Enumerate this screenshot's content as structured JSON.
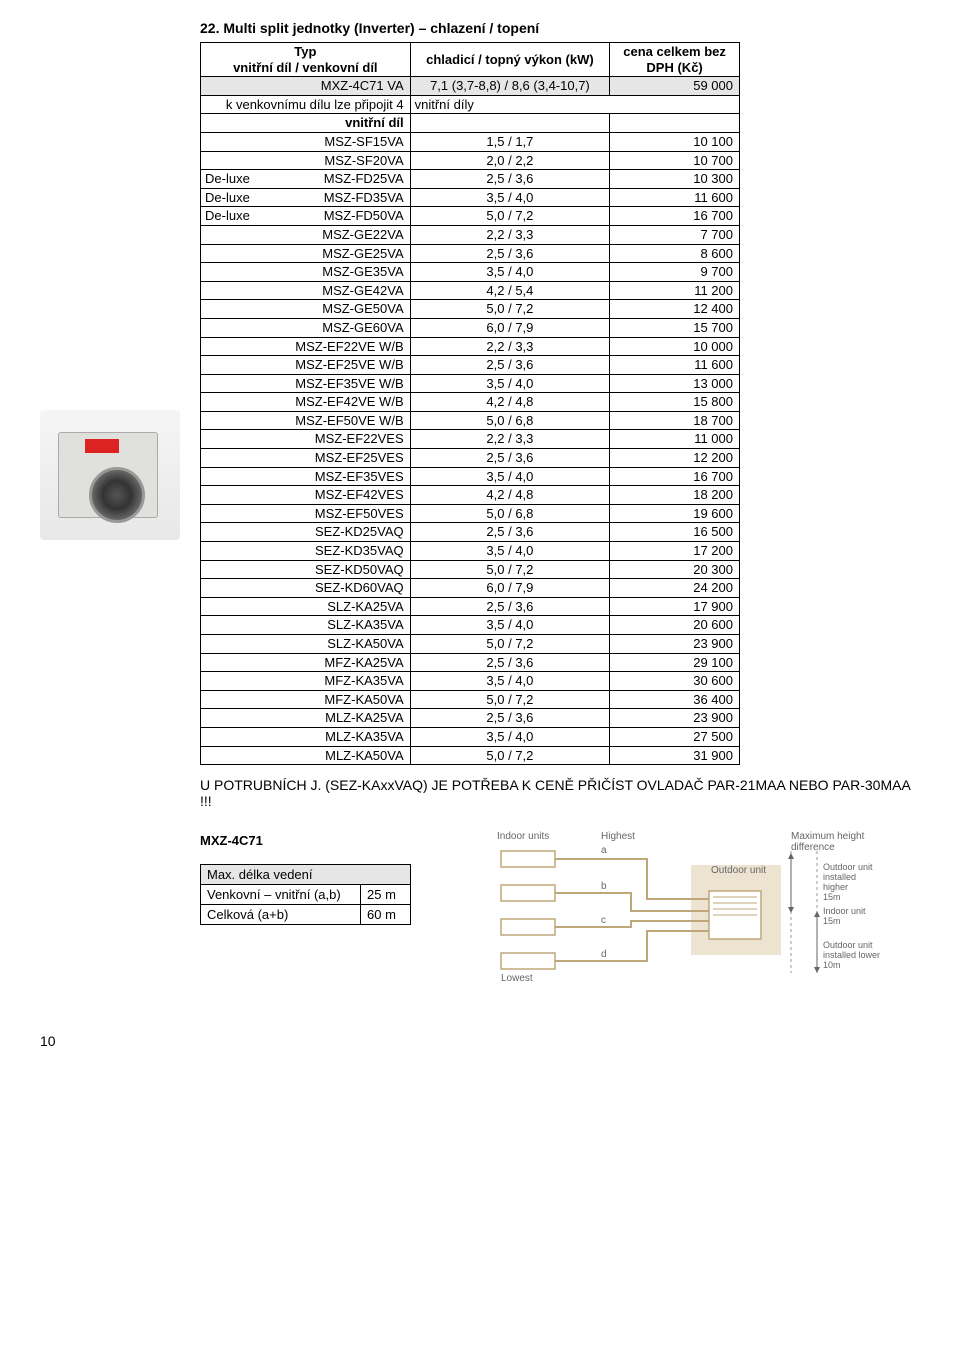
{
  "section_title": "22. Multi split jednotky (Inverter) – chlazení / topení",
  "headers": {
    "col1_line1": "Typ",
    "col1_line2": "vnitřní díl / venkovní díl",
    "col2": "chladicí / topný výkon (kW)",
    "col3_line1": "cena celkem bez",
    "col3_line2": "DPH (Kč)"
  },
  "master_row": {
    "name": "MXZ-4C71 VA",
    "power": "7,1 (3,7-8,8) / 8,6 (3,4-10,7)",
    "price": "59 000"
  },
  "attach_row": {
    "left": "k venkovnímu dílu lze připojit 4",
    "right": "vnitřní díly"
  },
  "inner_header": "vnitřní díl",
  "rows": [
    {
      "prefix": "",
      "name": "MSZ-SF15VA",
      "power": "1,5 / 1,7",
      "price": "10 100"
    },
    {
      "prefix": "",
      "name": "MSZ-SF20VA",
      "power": "2,0 / 2,2",
      "price": "10 700"
    },
    {
      "prefix": "De-luxe",
      "name": "MSZ-FD25VA",
      "power": "2,5 / 3,6",
      "price": "10 300"
    },
    {
      "prefix": "De-luxe",
      "name": "MSZ-FD35VA",
      "power": "3,5 / 4,0",
      "price": "11 600"
    },
    {
      "prefix": "De-luxe",
      "name": "MSZ-FD50VA",
      "power": "5,0 / 7,2",
      "price": "16 700"
    },
    {
      "prefix": "",
      "name": "MSZ-GE22VA",
      "power": "2,2 / 3,3",
      "price": "7 700"
    },
    {
      "prefix": "",
      "name": "MSZ-GE25VA",
      "power": "2,5 / 3,6",
      "price": "8 600"
    },
    {
      "prefix": "",
      "name": "MSZ-GE35VA",
      "power": "3,5 / 4,0",
      "price": "9 700"
    },
    {
      "prefix": "",
      "name": "MSZ-GE42VA",
      "power": "4,2 / 5,4",
      "price": "11 200"
    },
    {
      "prefix": "",
      "name": "MSZ-GE50VA",
      "power": "5,0 / 7,2",
      "price": "12 400"
    },
    {
      "prefix": "",
      "name": "MSZ-GE60VA",
      "power": "6,0 / 7,9",
      "price": "15 700"
    },
    {
      "prefix": "",
      "name": "MSZ-EF22VE W/B",
      "power": "2,2 / 3,3",
      "price": "10 000"
    },
    {
      "prefix": "",
      "name": "MSZ-EF25VE W/B",
      "power": "2,5 / 3,6",
      "price": "11 600"
    },
    {
      "prefix": "",
      "name": "MSZ-EF35VE W/B",
      "power": "3,5 / 4,0",
      "price": "13 000"
    },
    {
      "prefix": "",
      "name": "MSZ-EF42VE W/B",
      "power": "4,2 / 4,8",
      "price": "15 800"
    },
    {
      "prefix": "",
      "name": "MSZ-EF50VE W/B",
      "power": "5,0 / 6,8",
      "price": "18 700"
    },
    {
      "prefix": "",
      "name": "MSZ-EF22VES",
      "power": "2,2 / 3,3",
      "price": "11 000"
    },
    {
      "prefix": "",
      "name": "MSZ-EF25VES",
      "power": "2,5 / 3,6",
      "price": "12 200"
    },
    {
      "prefix": "",
      "name": "MSZ-EF35VES",
      "power": "3,5 / 4,0",
      "price": "16 700"
    },
    {
      "prefix": "",
      "name": "MSZ-EF42VES",
      "power": "4,2 / 4,8",
      "price": "18 200"
    },
    {
      "prefix": "",
      "name": "MSZ-EF50VES",
      "power": "5,0 / 6,8",
      "price": "19 600"
    },
    {
      "prefix": "",
      "name": "SEZ-KD25VAQ",
      "power": "2,5 / 3,6",
      "price": "16 500"
    },
    {
      "prefix": "",
      "name": "SEZ-KD35VAQ",
      "power": "3,5 / 4,0",
      "price": "17 200"
    },
    {
      "prefix": "",
      "name": "SEZ-KD50VAQ",
      "power": "5,0 / 7,2",
      "price": "20 300"
    },
    {
      "prefix": "",
      "name": "SEZ-KD60VAQ",
      "power": "6,0 / 7,9",
      "price": "24 200"
    },
    {
      "prefix": "",
      "name": "SLZ-KA25VA",
      "power": "2,5 / 3,6",
      "price": "17 900"
    },
    {
      "prefix": "",
      "name": "SLZ-KA35VA",
      "power": "3,5 / 4,0",
      "price": "20 600"
    },
    {
      "prefix": "",
      "name": "SLZ-KA50VA",
      "power": "5,0 / 7,2",
      "price": "23 900"
    },
    {
      "prefix": "",
      "name": "MFZ-KA25VA",
      "power": "2,5 / 3,6",
      "price": "29 100"
    },
    {
      "prefix": "",
      "name": "MFZ-KA35VA",
      "power": "3,5 / 4,0",
      "price": "30 600"
    },
    {
      "prefix": "",
      "name": "MFZ-KA50VA",
      "power": "5,0 / 7,2",
      "price": "36 400"
    },
    {
      "prefix": "",
      "name": "MLZ-KA25VA",
      "power": "2,5 / 3,6",
      "price": "23 900"
    },
    {
      "prefix": "",
      "name": "MLZ-KA35VA",
      "power": "3,5 / 4,0",
      "price": "27 500"
    },
    {
      "prefix": "",
      "name": "MLZ-KA50VA",
      "power": "5,0 / 7,2",
      "price": "31 900"
    }
  ],
  "note": "U POTRUBNÍCH J. (SEZ-KAxxVAQ) JE POTŘEBA K CENĚ PŘIČÍST OVLADAČ PAR-21MAA NEBO PAR-30MAA !!!",
  "specs": {
    "title": "MXZ-4C71",
    "header": "Max. délka vedení",
    "rows": [
      {
        "label": "Venkovní – vnitřní (a,b)",
        "value": "25 m"
      },
      {
        "label": "Celková (a+b)",
        "value": "60 m"
      }
    ]
  },
  "diagram": {
    "indoor_units_label": "Indoor units",
    "highest_label": "Highest",
    "max_height_label": "Maximum height difference",
    "outdoor_unit_label": "Outdoor unit",
    "lowest_label": "Lowest",
    "note1_line1": "Outdoor unit",
    "note1_line2": "installed higher",
    "note1_val": "15m",
    "note2_line1": "Indoor unit",
    "note2_val": "15m",
    "note3_line1": "Outdoor unit",
    "note3_line2": "installed lower",
    "note3_val": "10m",
    "a": "a",
    "b": "b",
    "c": "c",
    "d": "d"
  },
  "page_number": "10",
  "colors": {
    "grey_bg": "#e6e6e6",
    "border": "#000000",
    "diagram_tan": "#d9c8a4",
    "diagram_lines": "#bfa77a",
    "text_grey": "#666666"
  }
}
